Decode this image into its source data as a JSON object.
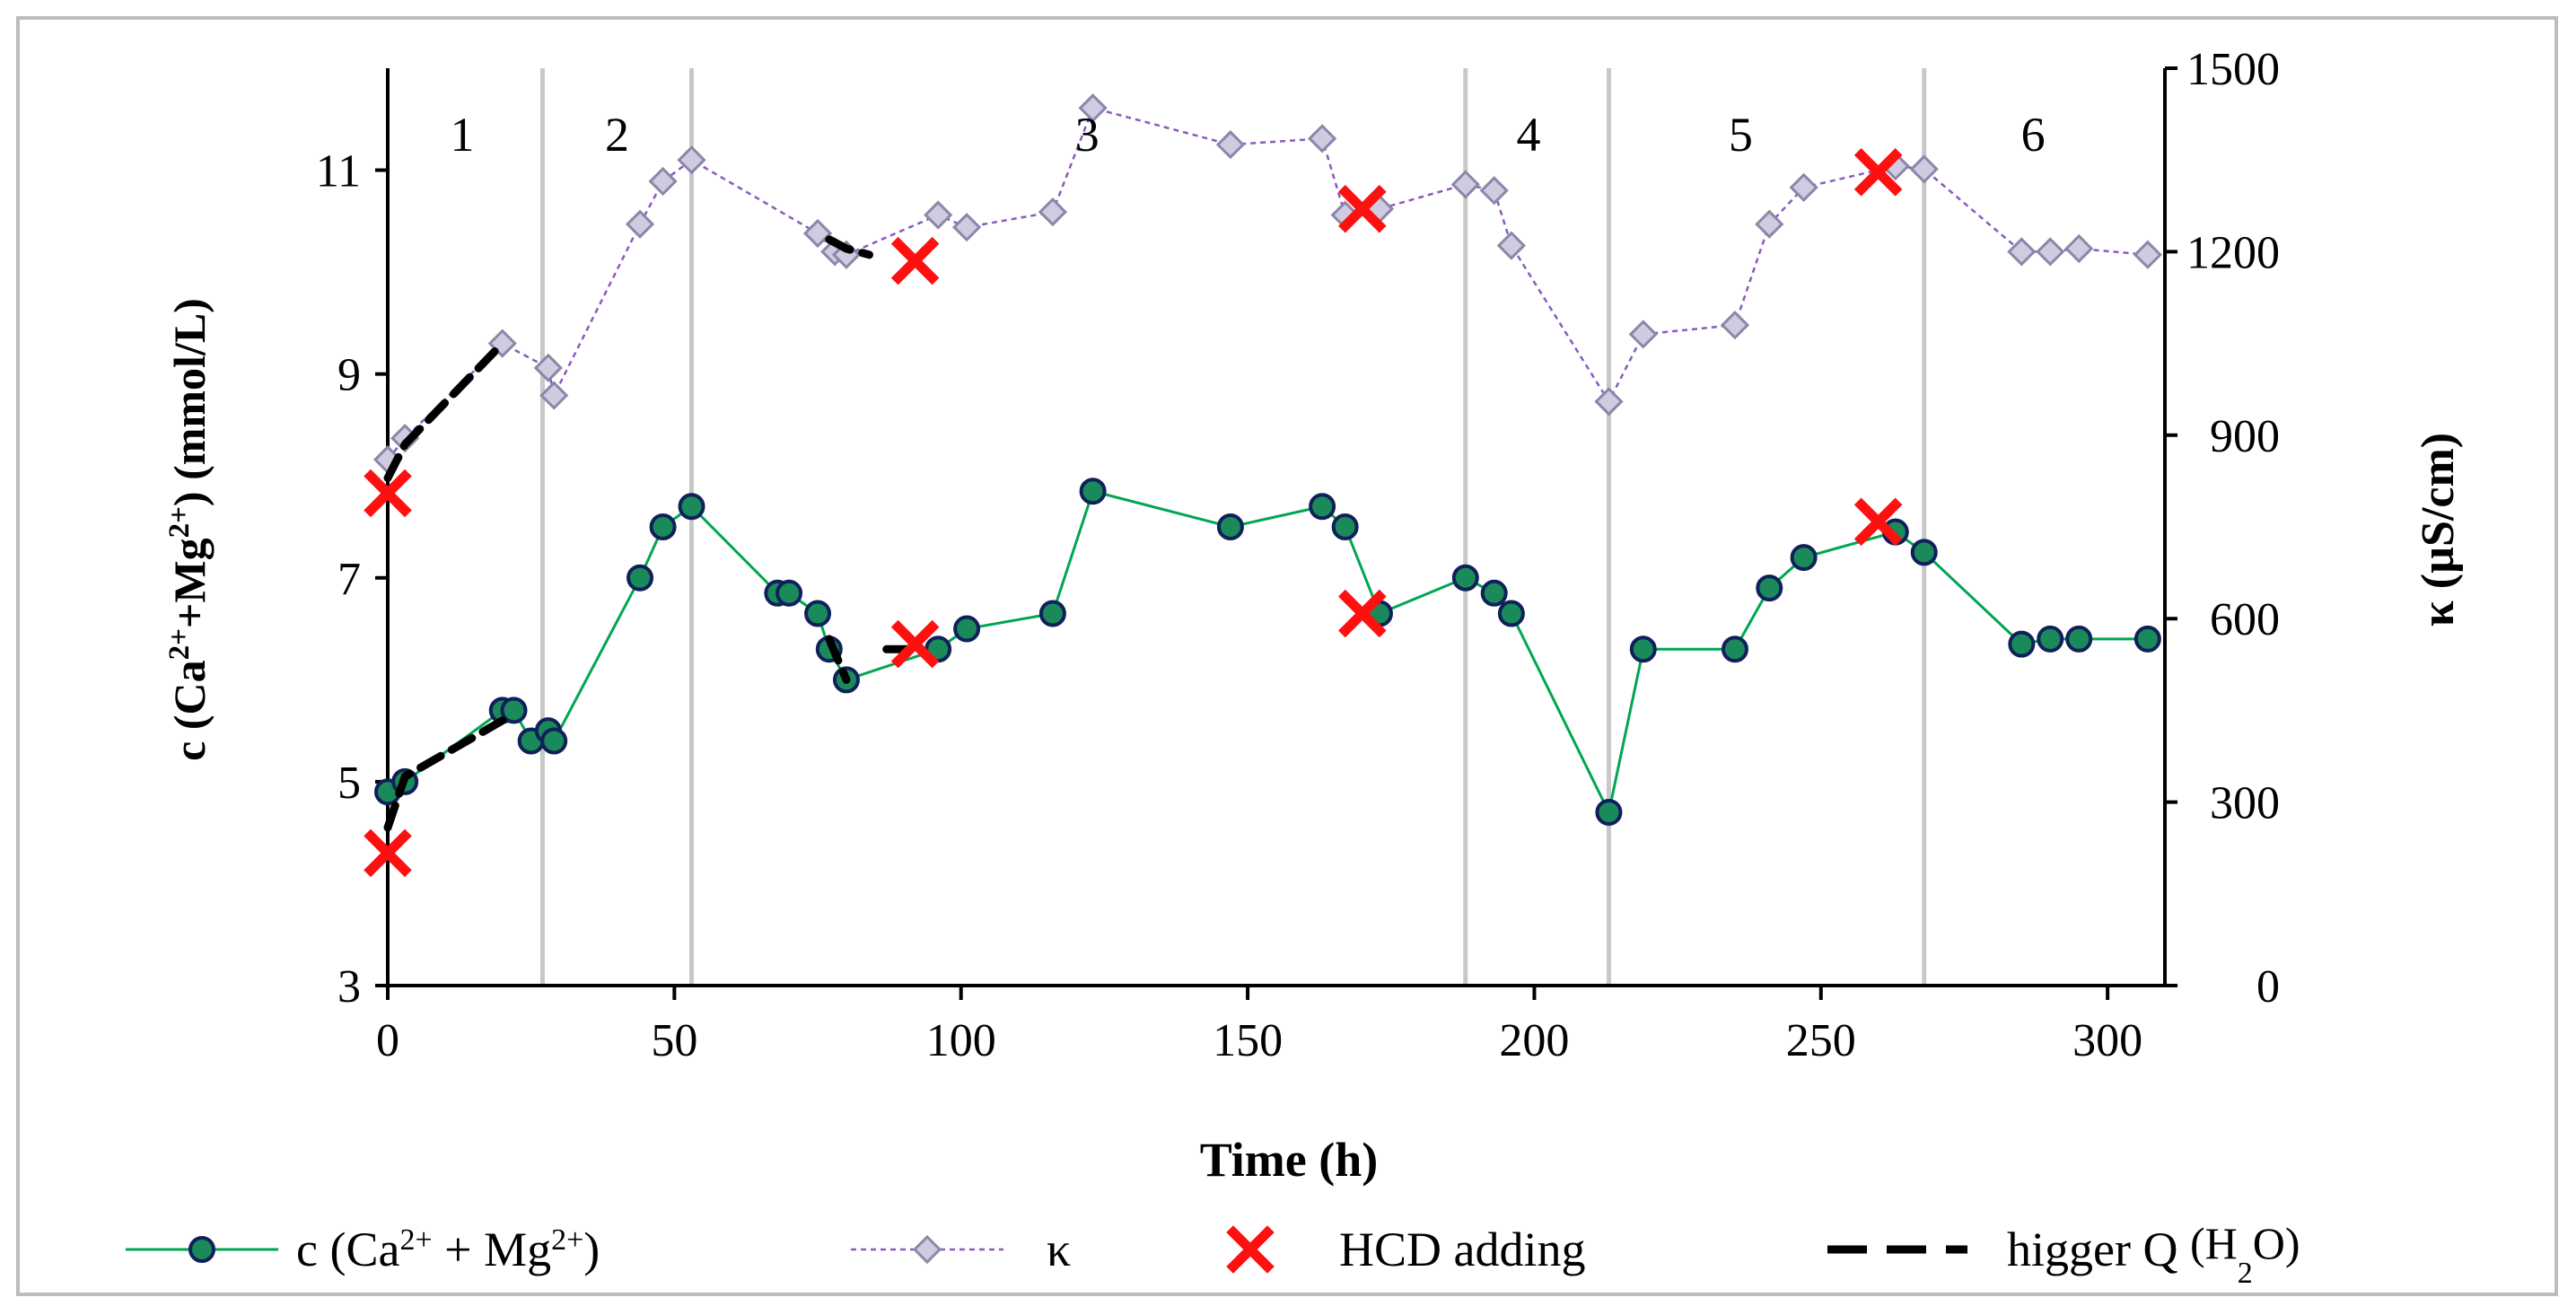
{
  "chart_data": {
    "type": "line",
    "xlabel": "Time (h)",
    "ylabel_left": "c (Ca2+ + Mg2+) (mmol/L)",
    "ylabel_right": "κ  (µS/cm)",
    "xlim": [
      0,
      310
    ],
    "xticks": [
      0,
      50,
      100,
      150,
      200,
      250,
      300
    ],
    "ylim_left": [
      3,
      12
    ],
    "yticks_left": [
      3,
      5,
      7,
      9,
      11
    ],
    "ylim_right": [
      0,
      1500
    ],
    "yticks_right": [
      0,
      300,
      600,
      900,
      1200,
      1500
    ],
    "phase_boundaries": [
      27,
      53,
      188,
      213,
      268
    ],
    "phases": [
      {
        "label": "1",
        "x": 13
      },
      {
        "label": "2",
        "x": 40
      },
      {
        "label": "3",
        "x": 122
      },
      {
        "label": "4",
        "x": 199
      },
      {
        "label": "5",
        "x": 236
      },
      {
        "label": "6",
        "x": 287
      }
    ],
    "series": [
      {
        "name": "c (Ca2+ + Mg2+)",
        "axis": "left",
        "color": "#00a651",
        "marker_fill": "#1a8a5a",
        "marker_edge": "#10205a",
        "points": [
          [
            0,
            4.9
          ],
          [
            3,
            5.0
          ],
          [
            20,
            5.7
          ],
          [
            22,
            5.7
          ],
          [
            25,
            5.4
          ],
          [
            28,
            5.5
          ],
          [
            29,
            5.4
          ],
          [
            44,
            7.0
          ],
          [
            48,
            7.5
          ],
          [
            53,
            7.7
          ],
          [
            68,
            6.85
          ],
          [
            70,
            6.85
          ],
          [
            75,
            6.65
          ],
          [
            77,
            6.3
          ],
          [
            80,
            6.0
          ],
          [
            96,
            6.3
          ],
          [
            101,
            6.5
          ],
          [
            116,
            6.65
          ],
          [
            123,
            7.85
          ],
          [
            147,
            7.5
          ],
          [
            163,
            7.7
          ],
          [
            167,
            7.5
          ],
          [
            173,
            6.65
          ],
          [
            188,
            7.0
          ],
          [
            193,
            6.85
          ],
          [
            196,
            6.65
          ],
          [
            213,
            4.7
          ],
          [
            219,
            6.3
          ],
          [
            235,
            6.3
          ],
          [
            241,
            6.9
          ],
          [
            247,
            7.2
          ],
          [
            263,
            7.45
          ],
          [
            268,
            7.25
          ],
          [
            285,
            6.35
          ],
          [
            290,
            6.4
          ],
          [
            295,
            6.4
          ],
          [
            307,
            6.4
          ]
        ]
      },
      {
        "name": "κ",
        "axis": "right",
        "color": "#8a5ac0",
        "marker_fill": "#cfcbe0",
        "marker_edge": "#8c87a8",
        "points": [
          [
            0,
            860
          ],
          [
            3,
            895
          ],
          [
            20,
            1050
          ],
          [
            28,
            1010
          ],
          [
            29,
            965
          ],
          [
            44,
            1245
          ],
          [
            48,
            1315
          ],
          [
            53,
            1350
          ],
          [
            75,
            1230
          ],
          [
            78,
            1200
          ],
          [
            80,
            1195
          ],
          [
            96,
            1260
          ],
          [
            101,
            1240
          ],
          [
            116,
            1265
          ],
          [
            123,
            1435
          ],
          [
            147,
            1375
          ],
          [
            163,
            1385
          ],
          [
            167,
            1260
          ],
          [
            173,
            1270
          ],
          [
            188,
            1310
          ],
          [
            193,
            1300
          ],
          [
            196,
            1210
          ],
          [
            213,
            955
          ],
          [
            219,
            1065
          ],
          [
            235,
            1080
          ],
          [
            241,
            1245
          ],
          [
            247,
            1305
          ],
          [
            263,
            1340
          ],
          [
            268,
            1335
          ],
          [
            285,
            1200
          ],
          [
            290,
            1200
          ],
          [
            295,
            1205
          ],
          [
            307,
            1195
          ]
        ]
      }
    ],
    "hcd_adding": {
      "name": "HCD adding",
      "color": "#ff1010",
      "points_left": [
        [
          0,
          4.3
        ],
        [
          92,
          6.35
        ],
        [
          170,
          6.65
        ],
        [
          260,
          7.55
        ]
      ],
      "points_right": [
        [
          0,
          805
        ],
        [
          92,
          1185
        ],
        [
          170,
          1270
        ],
        [
          260,
          1330
        ]
      ]
    },
    "higger_q": {
      "name": "higger Q (H2O)",
      "color": "#000000",
      "segments_left": [
        [
          [
            0,
            4.55
          ],
          [
            3,
            5.05
          ],
          [
            20,
            5.6
          ]
        ],
        [
          [
            77,
            6.4
          ],
          [
            80,
            6.0
          ]
        ],
        [
          [
            87,
            6.3
          ],
          [
            92,
            6.3
          ]
        ]
      ],
      "segments_right": [
        [
          [
            0,
            830
          ],
          [
            3,
            885
          ],
          [
            20,
            1050
          ]
        ],
        [
          [
            77,
            1220
          ],
          [
            80,
            1205
          ],
          [
            84,
            1195
          ]
        ]
      ]
    },
    "legend": {
      "position": "bottom",
      "entries": [
        {
          "kind": "line-circle",
          "text": "c (Ca",
          "sup1": "2+",
          "mid": " + Mg",
          "sup2": "2+",
          "end": ")"
        },
        {
          "kind": "line-diamond",
          "text": "κ"
        },
        {
          "kind": "cross",
          "text": "HCD adding"
        },
        {
          "kind": "dash",
          "text": "higger Q ",
          "paren": "(H",
          "sub": "2",
          "tail": "O)"
        }
      ]
    }
  }
}
